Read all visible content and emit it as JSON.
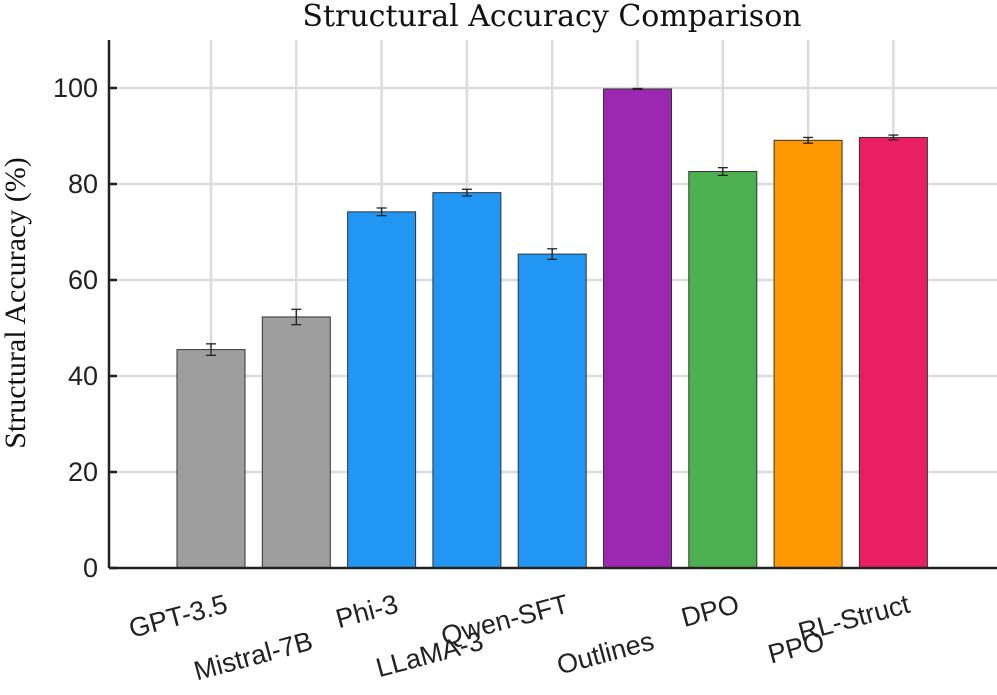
{
  "chart_data": {
    "type": "bar",
    "title": "Structural Accuracy Comparison",
    "xlabel": "",
    "ylabel": "Structural Accuracy (%)",
    "ylim": [
      0,
      110
    ],
    "yticks": [
      0,
      20,
      40,
      60,
      80,
      100
    ],
    "ytick_labels": [
      "0",
      "20",
      "40",
      "60",
      "80",
      "100"
    ],
    "grid": true,
    "categories": [
      "GPT-3.5",
      "Mistral-7B",
      "Phi-3",
      "LLaMA-3",
      "Qwen-SFT",
      "Outlines",
      "DPO",
      "PPO",
      "RL-Struct"
    ],
    "values": [
      45.5,
      52.3,
      74.2,
      78.2,
      65.4,
      99.8,
      82.6,
      89.1,
      89.7
    ],
    "errors": [
      1.2,
      1.6,
      0.8,
      0.7,
      1.1,
      0.1,
      0.8,
      0.6,
      0.5
    ],
    "colors": [
      "#9e9e9e",
      "#9e9e9e",
      "#2196f3",
      "#2196f3",
      "#2196f3",
      "#9c27b0",
      "#4caf50",
      "#ff9800",
      "#e91e63"
    ]
  }
}
